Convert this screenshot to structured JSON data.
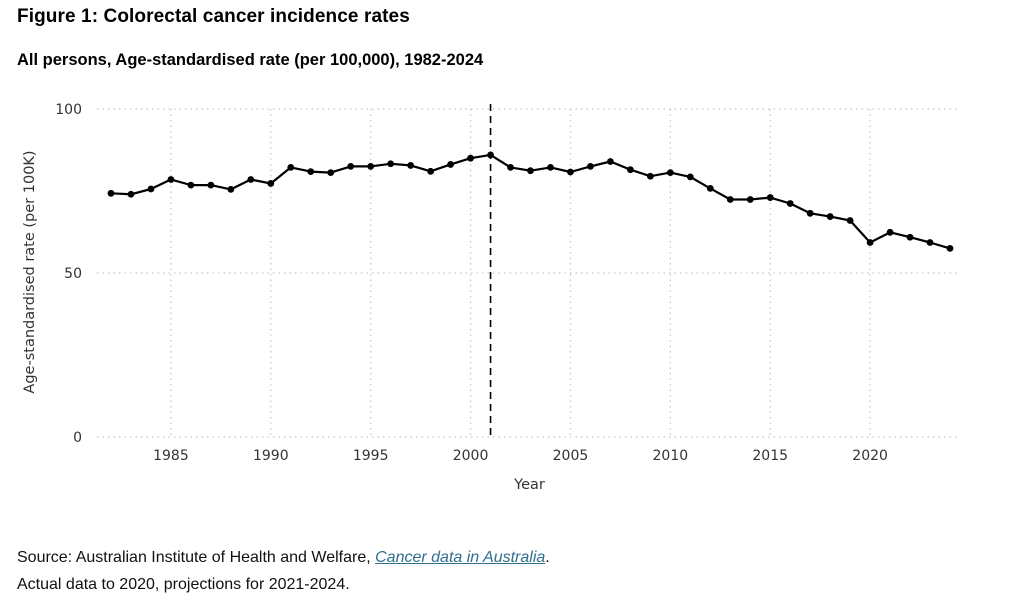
{
  "title": "Figure 1: Colorectal cancer incidence rates",
  "subtitle": "All persons, Age-standardised rate (per 100,000), 1982-2024",
  "footer": {
    "source_prefix": "Source: Australian Institute of Health and Welfare, ",
    "source_link": "Cancer data in Australia",
    "source_suffix": ".",
    "note": "Actual data to 2020, projections for 2021-2024."
  },
  "colors": {
    "line": "#000000",
    "grid": "#c8c8c8",
    "reference_line": "#000000",
    "link": "#2f6f8f"
  },
  "chart_data": {
    "type": "line",
    "xlabel": "Year",
    "ylabel": "Age-standardised rate (per 100K)",
    "xlim": [
      1981.3,
      2024.5
    ],
    "ylim": [
      0,
      100
    ],
    "x_ticks": [
      1985,
      1990,
      1995,
      2000,
      2005,
      2010,
      2015,
      2020
    ],
    "y_ticks": [
      0,
      50,
      100
    ],
    "grid": "dotted, both axes",
    "markers": true,
    "reference_line": {
      "x": 2001,
      "style": "dashed"
    },
    "x": [
      1982,
      1983,
      1984,
      1985,
      1986,
      1987,
      1988,
      1989,
      1990,
      1991,
      1992,
      1993,
      1994,
      1995,
      1996,
      1997,
      1998,
      1999,
      2000,
      2001,
      2002,
      2003,
      2004,
      2005,
      2006,
      2007,
      2008,
      2009,
      2010,
      2011,
      2012,
      2013,
      2014,
      2015,
      2016,
      2017,
      2018,
      2019,
      2020,
      2021,
      2022,
      2023,
      2024
    ],
    "series": [
      {
        "values": [
          74.3,
          74.0,
          75.6,
          78.5,
          76.8,
          76.8,
          75.5,
          78.5,
          77.3,
          82.2,
          80.9,
          80.6,
          82.5,
          82.5,
          83.3,
          82.8,
          81.0,
          83.1,
          85.0,
          86.0,
          82.2,
          81.2,
          82.2,
          80.8,
          82.5,
          84.0,
          81.5,
          79.5,
          80.6,
          79.3,
          75.8,
          72.4,
          72.4,
          73.0,
          71.2,
          68.2,
          67.2,
          66.0,
          59.3,
          62.4,
          60.9,
          59.3,
          57.5
        ]
      }
    ]
  }
}
